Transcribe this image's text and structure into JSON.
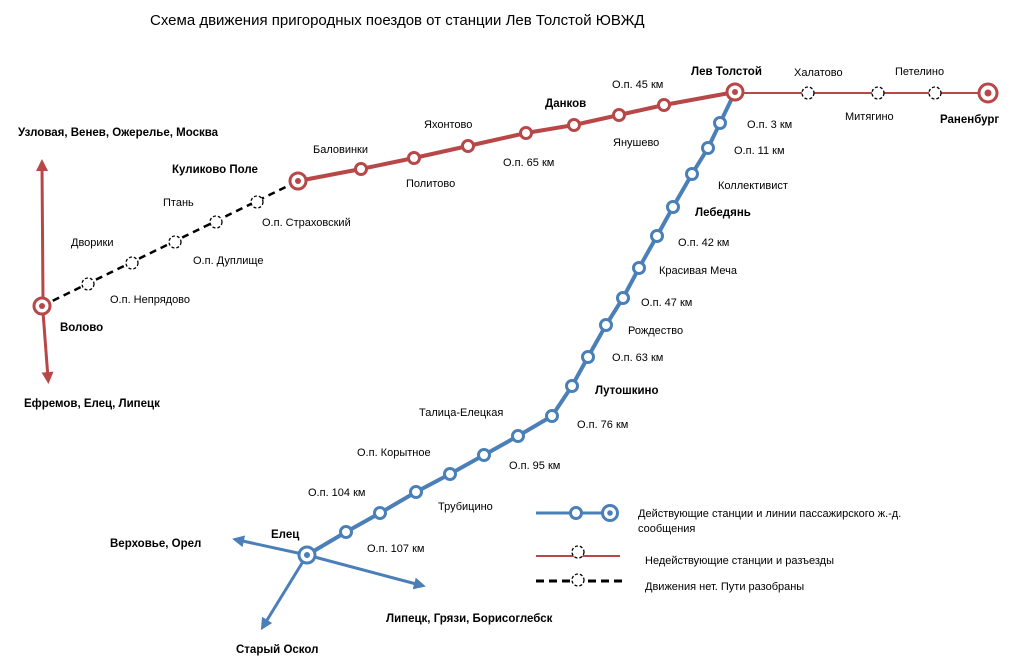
{
  "title": "Схема движения пригородных поездов от станции Лев Толстой ЮВЖД",
  "colors": {
    "active": "#4a7fb8",
    "inactive": "#b84748",
    "dismantled": "#000000"
  },
  "directions": {
    "north": "Узловая, Венев, Ожерелье, Москва",
    "south": "Ефремов, Елец, Липецк",
    "west": "Верховье, Орел",
    "southeast": "Липецк, Грязи, Борисоглебск",
    "southwest": "Старый Оскол"
  },
  "stations": {
    "lev_tolstoy": "Лев Толстой",
    "ranenburg": "Раненбург",
    "halatovo": "Халатово",
    "mityagino": "Митягино",
    "petelino": "Петелино",
    "op_45": "О.п. 45 км",
    "dankov": "Данков",
    "yanushevo": "Янушево",
    "yakhontovo": "Яхонтово",
    "op_65": "О.п. 65 км",
    "politovo": "Политово",
    "balovinki": "Баловинки",
    "kulikovo_pole": "Куликово Поле",
    "op_strakhovsky": "О.п. Страховский",
    "ptan": "Птань",
    "op_duplishche": "О.п. Дуплище",
    "dvoriki": "Дворики",
    "op_nepryadovo": "О.п. Непрядово",
    "volovo": "Волово",
    "op_3": "О.п. 3 км",
    "op_11": "О.п. 11 км",
    "kollektivist": "Коллективист",
    "lebedyan": "Лебедянь",
    "op_42": "О.п. 42 км",
    "krasivaya_mecha": "Красивая Меча",
    "op_47": "О.п. 47 км",
    "rozhdestvo": "Рождество",
    "op_63": "О.п. 63 км",
    "lutoshkino": "Лутошкино",
    "talitsa": "Талица-Елецкая",
    "op_76": "О.п. 76 км",
    "op_korytnoe": "О.п. Корытное",
    "op_95": "О.п. 95 км",
    "op_104": "О.п. 104 км",
    "trubitsino": "Трубицино",
    "elets": "Елец",
    "op_107": "О.п. 107 км"
  },
  "legend": {
    "active": "Действующие станции и линии пассажирского ж.-д. сообщения",
    "inactive": "Недействующие станции и разъезды",
    "dismantled": "Движения нет. Пути разобраны"
  }
}
